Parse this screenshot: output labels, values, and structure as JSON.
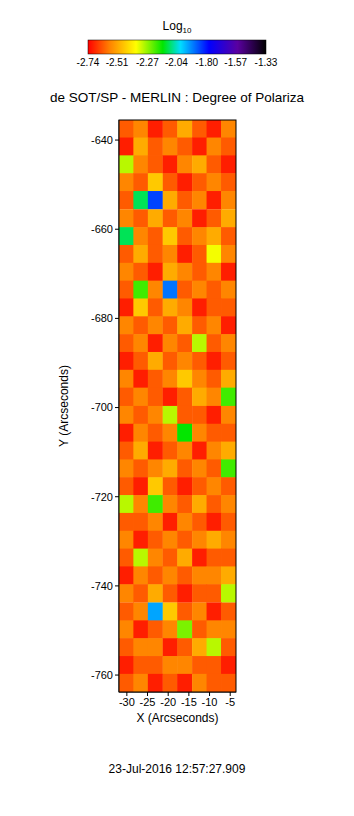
{
  "chart_data": {
    "type": "heatmap",
    "title": "de SOT/SP - MERLIN : Degree of Polariza",
    "annotations": [
      "23-Jul-2016 12:57:27.909"
    ],
    "x_label": "X (Arcseconds)",
    "y_label": "Y (Arcseconds)",
    "xlim": [
      -31.9,
      -3.6
    ],
    "xticks": [
      -30,
      -25,
      -20,
      -15,
      -10,
      -5
    ],
    "ylim": [
      -763.8,
      -635.5
    ],
    "yticks": [
      -640,
      -660,
      -680,
      -700,
      -720,
      -740,
      -760
    ],
    "cell_x": [
      -30.1,
      -26.6,
      -23.1,
      -19.5,
      -16.0,
      -12.4,
      -8.9,
      -5.4
    ],
    "cell_y": [
      -637.5,
      -641.5,
      -645.5,
      -649.5,
      -653.5,
      -657.6,
      -661.6,
      -665.6,
      -669.6,
      -673.6,
      -677.6,
      -681.6,
      -685.6,
      -689.6,
      -693.6,
      -697.6,
      -701.7,
      -705.7,
      -709.7,
      -713.7,
      -717.7,
      -721.7,
      -725.7,
      -729.7,
      -733.7,
      -737.7,
      -741.7,
      -745.8,
      -749.8,
      -753.8,
      -757.8,
      -761.8
    ],
    "cells": [
      [
        -2.62,
        -2.56,
        -2.7,
        -2.62,
        -2.5,
        -2.62,
        -2.7,
        -2.56
      ],
      [
        -2.7,
        -2.5,
        -2.62,
        -2.56,
        -2.62,
        -2.7,
        -2.56,
        -2.62
      ],
      [
        -2.3,
        -2.56,
        -2.62,
        -2.7,
        -2.56,
        -2.5,
        -2.62,
        -2.7
      ],
      [
        -2.56,
        -2.62,
        -2.45,
        -2.62,
        -2.7,
        -2.62,
        -2.56,
        -2.62
      ],
      [
        -2.62,
        -2.1,
        -1.85,
        -2.5,
        -2.62,
        -2.56,
        -2.7,
        -2.56
      ],
      [
        -2.56,
        -2.62,
        -2.5,
        -2.62,
        -2.56,
        -2.7,
        -2.62,
        -2.5
      ],
      [
        -2.1,
        -2.56,
        -2.62,
        -2.45,
        -2.62,
        -2.56,
        -2.5,
        -2.62
      ],
      [
        -2.62,
        -2.5,
        -2.62,
        -2.56,
        -2.7,
        -2.62,
        -2.35,
        -2.56
      ],
      [
        -2.56,
        -2.62,
        -2.7,
        -2.5,
        -2.56,
        -2.62,
        -2.56,
        -2.7
      ],
      [
        -2.62,
        -2.2,
        -2.56,
        -1.9,
        -2.62,
        -2.56,
        -2.62,
        -2.56
      ],
      [
        -2.7,
        -2.45,
        -2.62,
        -2.5,
        -2.56,
        -2.7,
        -2.62,
        -2.62
      ],
      [
        -2.56,
        -2.62,
        -2.56,
        -2.62,
        -2.5,
        -2.62,
        -2.56,
        -2.7
      ],
      [
        -2.62,
        -2.56,
        -2.7,
        -2.56,
        -2.62,
        -2.3,
        -2.62,
        -2.56
      ],
      [
        -2.7,
        -2.62,
        -2.5,
        -2.62,
        -2.56,
        -2.62,
        -2.7,
        -2.62
      ],
      [
        -2.56,
        -2.7,
        -2.62,
        -2.56,
        -2.45,
        -2.56,
        -2.62,
        -2.5
      ],
      [
        -2.62,
        -2.56,
        -2.62,
        -2.7,
        -2.62,
        -2.5,
        -2.56,
        -2.2
      ],
      [
        -2.56,
        -2.62,
        -2.56,
        -2.3,
        -2.62,
        -2.62,
        -2.7,
        -2.56
      ],
      [
        -2.7,
        -2.56,
        -2.62,
        -2.56,
        -2.15,
        -2.56,
        -2.62,
        -2.62
      ],
      [
        -2.62,
        -2.5,
        -2.7,
        -2.62,
        -2.56,
        -2.7,
        -2.56,
        -2.5
      ],
      [
        -2.56,
        -2.62,
        -2.56,
        -2.5,
        -2.62,
        -2.56,
        -2.62,
        -2.2
      ],
      [
        -2.62,
        -2.7,
        -2.45,
        -2.62,
        -2.7,
        -2.62,
        -2.56,
        -2.62
      ],
      [
        -2.3,
        -2.56,
        -2.2,
        -2.56,
        -2.62,
        -2.5,
        -2.62,
        -2.56
      ],
      [
        -2.62,
        -2.62,
        -2.56,
        -2.7,
        -2.56,
        -2.62,
        -2.7,
        -2.62
      ],
      [
        -2.56,
        -2.7,
        -2.62,
        -2.56,
        -2.62,
        -2.56,
        -2.5,
        -2.56
      ],
      [
        -2.62,
        -2.3,
        -2.56,
        -2.62,
        -2.5,
        -2.7,
        -2.62,
        -2.62
      ],
      [
        -2.7,
        -2.56,
        -2.62,
        -2.56,
        -2.62,
        -2.56,
        -2.56,
        -2.5
      ],
      [
        -2.56,
        -2.62,
        -2.5,
        -2.62,
        -2.7,
        -2.62,
        -2.62,
        -2.3
      ],
      [
        -2.62,
        -2.56,
        -1.95,
        -2.45,
        -2.62,
        -2.56,
        -2.7,
        -2.62
      ],
      [
        -2.56,
        -2.7,
        -2.62,
        -2.56,
        -2.25,
        -2.62,
        -2.56,
        -2.56
      ],
      [
        -2.62,
        -2.56,
        -2.56,
        -2.7,
        -2.62,
        -2.5,
        -2.3,
        -2.62
      ],
      [
        -2.7,
        -2.62,
        -2.62,
        -2.56,
        -2.56,
        -2.62,
        -2.62,
        -2.7
      ],
      [
        -2.62,
        -2.56,
        -2.7,
        -2.62,
        -2.7,
        -2.56,
        -2.62,
        -2.62
      ]
    ],
    "colorbar": {
      "label": "Log10",
      "range": [
        -2.74,
        -1.33
      ],
      "ticks": [
        -2.74,
        -2.51,
        -2.27,
        -2.04,
        {
          "value": -1.8,
          "label": "-1.80"
        },
        -1.57,
        -1.33
      ]
    }
  }
}
